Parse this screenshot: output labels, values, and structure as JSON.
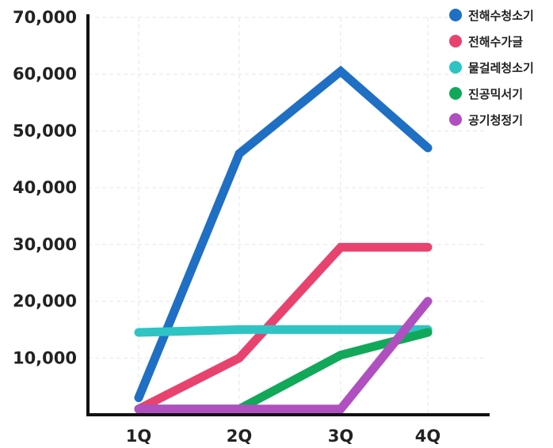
{
  "chart_data": {
    "type": "line",
    "categories": [
      "1Q",
      "2Q",
      "3Q",
      "4Q"
    ],
    "ylim": [
      0,
      70000
    ],
    "yticks": [
      10000,
      20000,
      30000,
      40000,
      50000,
      60000,
      70000
    ],
    "ytick_labels": [
      "10,000",
      "20,000",
      "30,000",
      "40,000",
      "50,000",
      "60,000",
      "70,000"
    ],
    "grid": true,
    "legend": "top-right",
    "series": [
      {
        "name": "전해수청소기",
        "color": "#1f6fc4",
        "values": [
          3000,
          46000,
          60500,
          47000
        ]
      },
      {
        "name": "전해수가글",
        "color": "#e8436f",
        "values": [
          1000,
          10000,
          29500,
          29500
        ]
      },
      {
        "name": "물걸레청소기",
        "color": "#2ec4c4",
        "values": [
          14500,
          15000,
          15000,
          15000
        ]
      },
      {
        "name": "진공믹서기",
        "color": "#11a85a",
        "values": [
          1000,
          1000,
          10500,
          14500
        ]
      },
      {
        "name": "공기청정기",
        "color": "#b050c0",
        "values": [
          1000,
          1000,
          1000,
          20000
        ]
      }
    ]
  }
}
